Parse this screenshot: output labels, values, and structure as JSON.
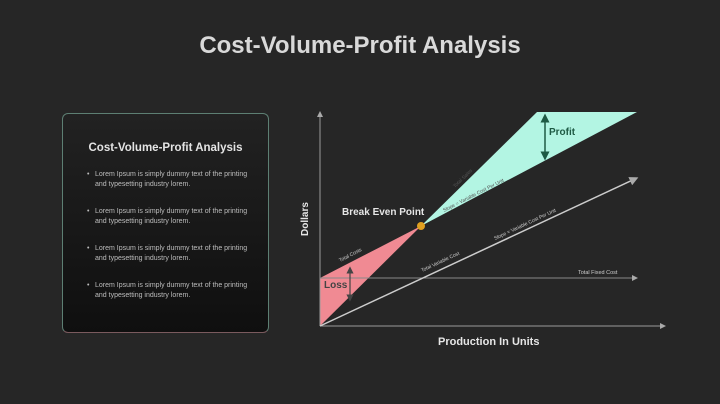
{
  "title": "Cost-Volume-Profit Analysis",
  "card": {
    "heading": "Cost-Volume-Profit Analysis",
    "bullets": [
      "Lorem Ipsum is simply dummy text of the printing and typesetting industry lorem.",
      "Lorem Ipsum is simply dummy text of the printing and typesetting industry lorem.",
      "Lorem Ipsum is simply dummy text of the printing and typesetting industry lorem.",
      "Lorem Ipsum is simply dummy text of the printing and typesetting industry lorem."
    ]
  },
  "diagram": {
    "y_label": "Dollars",
    "x_label": "Production In Units",
    "break_even": "Break Even Point",
    "profit": "Profit",
    "loss": "Loss",
    "total_sales": "Total Sales",
    "slope_sales": "Slope = Variable Cost Per Unit",
    "total_costs": "Total Costs",
    "total_variable_cost": "Total Variable Cost",
    "slope_variable": "Slope = Variable Cost Per Unit",
    "total_fixed_cost": "Total Fixed Cost",
    "colors": {
      "profit": "#b3f5e3",
      "loss": "#f08a93",
      "break_even": "#e0a020"
    }
  }
}
